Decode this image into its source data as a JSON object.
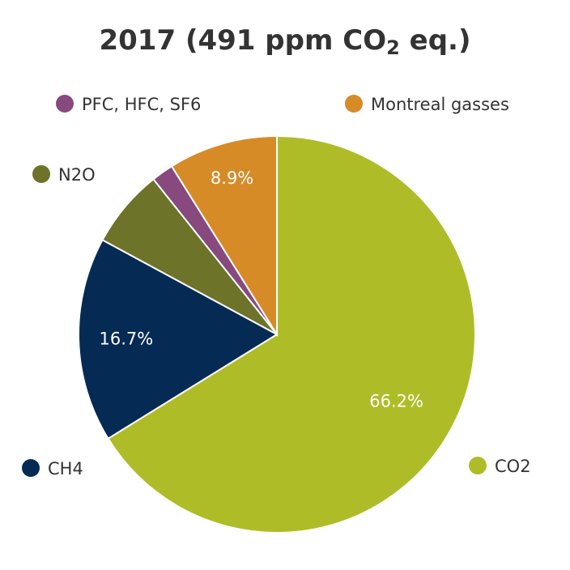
{
  "chart_data": {
    "type": "pie",
    "title": {
      "prefix": "2017 (491 ppm CO",
      "subscript": "2",
      "suffix": " eq.)"
    },
    "slices": [
      {
        "name": "CO2",
        "value": 66.2,
        "label": "66.2%",
        "color": "#aebd27"
      },
      {
        "name": "CH4",
        "value": 16.7,
        "label": "16.7%",
        "color": "#052b55"
      },
      {
        "name": "N2O",
        "value": 6.4,
        "label": "",
        "color": "#6d7329"
      },
      {
        "name": "PFC, HFC, SF6",
        "value": 1.8,
        "label": "",
        "color": "#88497f"
      },
      {
        "name": "Montreal gasses",
        "value": 8.9,
        "label": "8.9%",
        "color": "#d68b27"
      }
    ],
    "legend_placement": "around the pie"
  }
}
